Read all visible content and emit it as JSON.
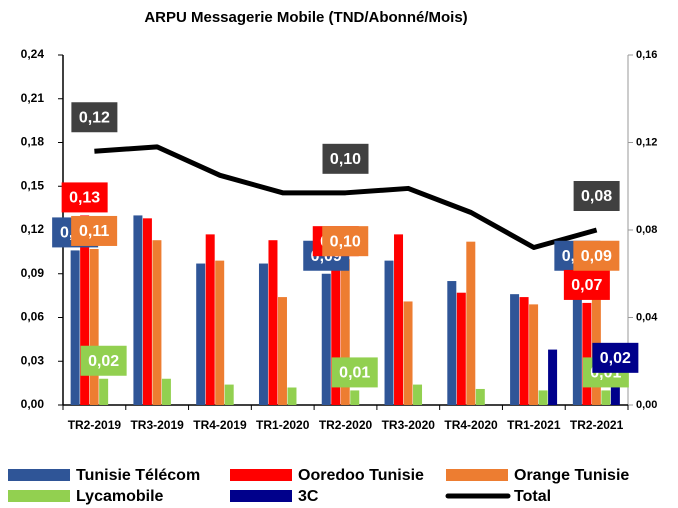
{
  "chart_data": {
    "type": "bar",
    "title": "ARPU Messagerie Mobile (TND/Abonné/Mois)",
    "categories": [
      "TR2-2019",
      "TR3-2019",
      "TR4-2019",
      "TR1-2020",
      "TR2-2020",
      "TR3-2020",
      "TR4-2020",
      "TR1-2021",
      "TR2-2021"
    ],
    "series": [
      {
        "name": "Tunisie Télécom",
        "color": "#2f5597",
        "values": [
          0.106,
          0.13,
          0.097,
          0.097,
          0.09,
          0.099,
          0.085,
          0.076,
          0.09
        ],
        "value_labels": [
          "0,11",
          null,
          null,
          null,
          "0,09",
          null,
          null,
          null,
          "0,09"
        ]
      },
      {
        "name": "Ooredoo Tunisie",
        "color": "#ff0000",
        "values": [
          0.13,
          0.128,
          0.117,
          0.113,
          0.1,
          0.117,
          0.077,
          0.074,
          0.07
        ],
        "value_labels": [
          "0,13",
          null,
          null,
          null,
          "0,10",
          null,
          null,
          null,
          "0,07"
        ]
      },
      {
        "name": "Orange Tunisie",
        "color": "#ed7d31",
        "values": [
          0.107,
          0.113,
          0.099,
          0.074,
          0.1,
          0.071,
          0.112,
          0.069,
          0.09
        ],
        "value_labels": [
          "0,11",
          null,
          null,
          null,
          "0,10",
          null,
          null,
          null,
          "0,09"
        ]
      },
      {
        "name": "Lycamobile",
        "color": "#92d050",
        "values": [
          0.018,
          0.018,
          0.014,
          0.012,
          0.01,
          0.014,
          0.011,
          0.01,
          0.01
        ],
        "value_labels": [
          "0,02",
          null,
          null,
          null,
          "0,01",
          null,
          null,
          null,
          "0,01"
        ]
      },
      {
        "name": "3C",
        "color": "#00008b",
        "values": [
          null,
          null,
          null,
          null,
          null,
          null,
          null,
          0.038,
          0.02
        ],
        "value_labels": [
          null,
          null,
          null,
          null,
          null,
          null,
          null,
          null,
          "0,02"
        ]
      },
      {
        "name": "Total",
        "color": "#000000",
        "type": "line",
        "axis": "y2",
        "values": [
          0.116,
          0.118,
          0.105,
          0.097,
          0.097,
          0.099,
          0.088,
          0.072,
          0.08
        ],
        "value_labels": [
          "0,12",
          null,
          null,
          null,
          "0,10",
          null,
          null,
          null,
          "0,08"
        ]
      }
    ],
    "ylim": [
      0,
      0.24
    ],
    "yticks": [
      {
        "value": 0,
        "label": "0,00"
      },
      {
        "value": 0.03,
        "label": "0,03"
      },
      {
        "value": 0.06,
        "label": "0,06"
      },
      {
        "value": 0.09,
        "label": "0,09"
      },
      {
        "value": 0.12,
        "label": "0,12"
      },
      {
        "value": 0.15,
        "label": "0,15"
      },
      {
        "value": 0.18,
        "label": "0,18"
      },
      {
        "value": 0.21,
        "label": "0,21"
      },
      {
        "value": 0.24,
        "label": "0,24"
      }
    ],
    "y2lim": [
      0,
      0.16
    ],
    "y2ticks": [
      {
        "value": 0,
        "label": "0,00"
      },
      {
        "value": 0.04,
        "label": "0,04"
      },
      {
        "value": 0.08,
        "label": "0,08"
      },
      {
        "value": 0.12,
        "label": "0,12"
      },
      {
        "value": 0.16,
        "label": "0,16"
      }
    ],
    "grid": false
  }
}
